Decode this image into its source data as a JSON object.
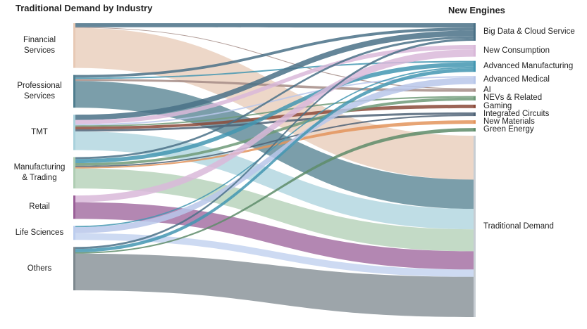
{
  "headers": {
    "left": "Traditional Demand by Industry",
    "right": "New Engines"
  },
  "colors": {
    "Financial Services": "#e7c9b5",
    "Professional Services": "#4f7d8e",
    "TMT": "#a9d1dc",
    "Manufacturing & Trading": "#afcdb3",
    "Retail": "#9a5f98",
    "Life Sciences": "#bccdee",
    "Others": "#7c878d",
    "Big Data & Cloud Service": "#4a7187",
    "New Consumption": "#d9b8d9",
    "Advanced Manufacturing": "#4397b2",
    "Advanced Medical": "#b8c7ea",
    "AI": "#a48c86",
    "NEVs & Related": "#6e9a78",
    "Gaming": "#8b4a3a",
    "Integrated Circuits": "#4e6275",
    "New Materials": "#e3945c",
    "Green Energy": "#5e8c6a",
    "Traditional Demand": "#c7cdd3"
  },
  "left_nodes": [
    {
      "id": "fin",
      "label": [
        "Financial",
        "Services"
      ]
    },
    {
      "id": "prof",
      "label": [
        "Professional",
        "Services"
      ]
    },
    {
      "id": "tmt",
      "label": [
        "TMT"
      ]
    },
    {
      "id": "mfg",
      "label": [
        "Manufacturing",
        "& Trading"
      ]
    },
    {
      "id": "ret",
      "label": [
        "Retail"
      ]
    },
    {
      "id": "life",
      "label": [
        "Life Sciences"
      ]
    },
    {
      "id": "oth",
      "label": [
        "Others"
      ]
    }
  ],
  "right_nodes": [
    {
      "id": "bigdata",
      "label": "Big Data & Cloud Service"
    },
    {
      "id": "newcons",
      "label": "New Consumption"
    },
    {
      "id": "advmfg",
      "label": "Advanced Manufacturing"
    },
    {
      "id": "advmed",
      "label": "Advanced Medical"
    },
    {
      "id": "ai",
      "label": "AI"
    },
    {
      "id": "nev",
      "label": "NEVs & Related"
    },
    {
      "id": "gaming",
      "label": "Gaming"
    },
    {
      "id": "ic",
      "label": "Integrated Circuits"
    },
    {
      "id": "newmat",
      "label": "New Materials"
    },
    {
      "id": "green",
      "label": "Green Energy"
    },
    {
      "id": "trad",
      "label": "Traditional Demand"
    }
  ],
  "flows": [
    {
      "source": "fin",
      "target": "bigdata",
      "value": 6
    },
    {
      "source": "fin",
      "target": "ai",
      "value": 1
    },
    {
      "source": "fin",
      "target": "trad",
      "value": 60
    },
    {
      "source": "prof",
      "target": "bigdata",
      "value": 4
    },
    {
      "source": "prof",
      "target": "advmfg",
      "value": 2
    },
    {
      "source": "prof",
      "target": "ai",
      "value": 3
    },
    {
      "source": "prof",
      "target": "trad",
      "value": 40
    },
    {
      "source": "tmt",
      "target": "bigdata",
      "value": 8
    },
    {
      "source": "tmt",
      "target": "newcons",
      "value": 6
    },
    {
      "source": "tmt",
      "target": "advmed",
      "value": 2
    },
    {
      "source": "tmt",
      "target": "nev",
      "value": 2
    },
    {
      "source": "tmt",
      "target": "gaming",
      "value": 4
    },
    {
      "source": "tmt",
      "target": "ic",
      "value": 3
    },
    {
      "source": "tmt",
      "target": "trad",
      "value": 28
    },
    {
      "source": "mfg",
      "target": "bigdata",
      "value": 3
    },
    {
      "source": "mfg",
      "target": "advmfg",
      "value": 6
    },
    {
      "source": "mfg",
      "target": "nev",
      "value": 4
    },
    {
      "source": "mfg",
      "target": "ic",
      "value": 2
    },
    {
      "source": "mfg",
      "target": "newmat",
      "value": 2
    },
    {
      "source": "mfg",
      "target": "trad",
      "value": 30
    },
    {
      "source": "ret",
      "target": "newcons",
      "value": 10
    },
    {
      "source": "ret",
      "target": "trad",
      "value": 25
    },
    {
      "source": "life",
      "target": "advmfg",
      "value": 2
    },
    {
      "source": "life",
      "target": "advmed",
      "value": 9
    },
    {
      "source": "life",
      "target": "trad",
      "value": 10
    },
    {
      "source": "oth",
      "target": "bigdata",
      "value": 3
    },
    {
      "source": "oth",
      "target": "advmfg",
      "value": 5
    },
    {
      "source": "oth",
      "target": "green",
      "value": 2
    },
    {
      "source": "oth",
      "target": "trad",
      "value": 55
    }
  ]
}
